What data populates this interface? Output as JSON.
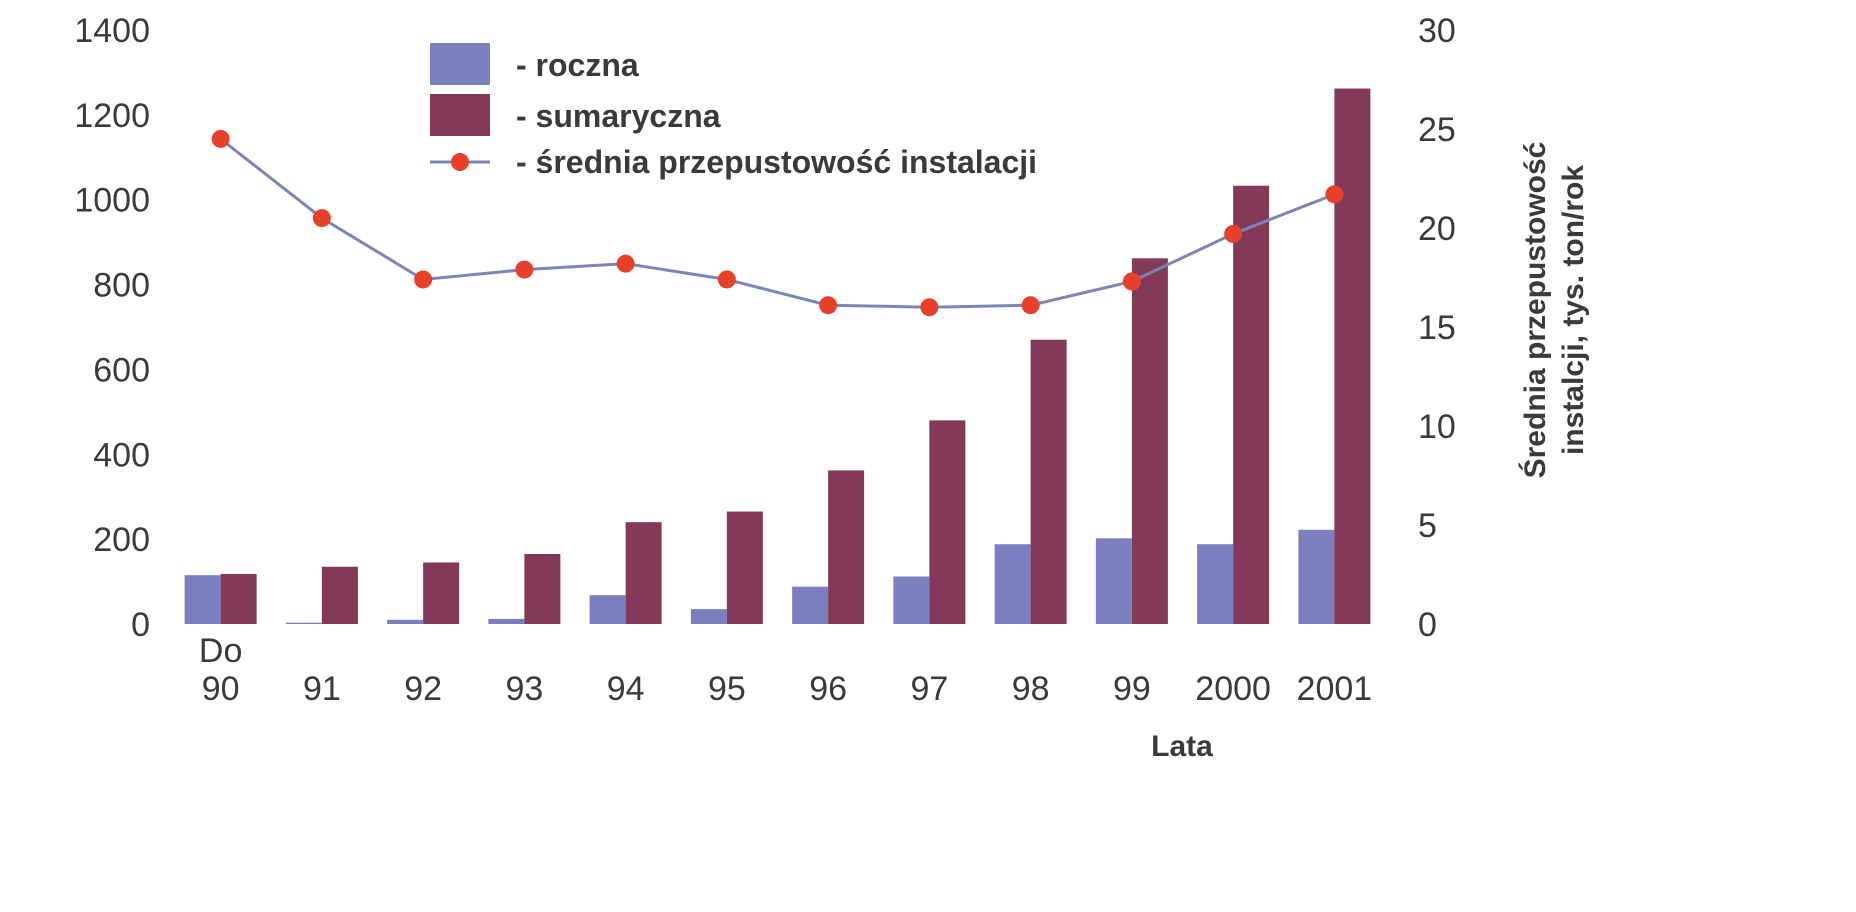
{
  "chart_data": {
    "type": "bar",
    "categories": [
      [
        "Do",
        "90"
      ],
      [
        "91"
      ],
      [
        "92"
      ],
      [
        "93"
      ],
      [
        "94"
      ],
      [
        "95"
      ],
      [
        "96"
      ],
      [
        "97"
      ],
      [
        "98"
      ],
      [
        "99"
      ],
      [
        "2000"
      ],
      [
        "2001"
      ]
    ],
    "xlabel": "Lata",
    "ylim": [
      0,
      1400
    ],
    "yticks": [
      0,
      200,
      400,
      600,
      800,
      1000,
      1200,
      1400
    ],
    "y2label": [
      "Średnia przepustowość",
      "instalcji, tys. ton/rok"
    ],
    "y2lim": [
      0,
      30
    ],
    "y2ticks": [
      0,
      5,
      10,
      15,
      20,
      25,
      30
    ],
    "grid": false,
    "legend_position": "top-center",
    "series": [
      {
        "name": "- roczna",
        "kind": "bar",
        "axis": "left",
        "color": "#7b7fc0",
        "values": [
          115,
          3,
          10,
          12,
          68,
          35,
          88,
          112,
          188,
          202,
          188,
          222
        ]
      },
      {
        "name": "- sumaryczna",
        "kind": "bar",
        "axis": "left",
        "color": "#833a58",
        "values": [
          118,
          135,
          145,
          165,
          240,
          265,
          362,
          480,
          670,
          862,
          1033,
          1262
        ]
      },
      {
        "name": "- średnia przepustowość instalacji",
        "kind": "line",
        "axis": "right",
        "color": "#7d85b5",
        "marker_color": "#e8412b",
        "values": [
          24.5,
          20.5,
          17.4,
          17.9,
          18.2,
          17.4,
          16.1,
          16.0,
          16.1,
          17.3,
          19.7,
          21.7
        ]
      }
    ]
  }
}
